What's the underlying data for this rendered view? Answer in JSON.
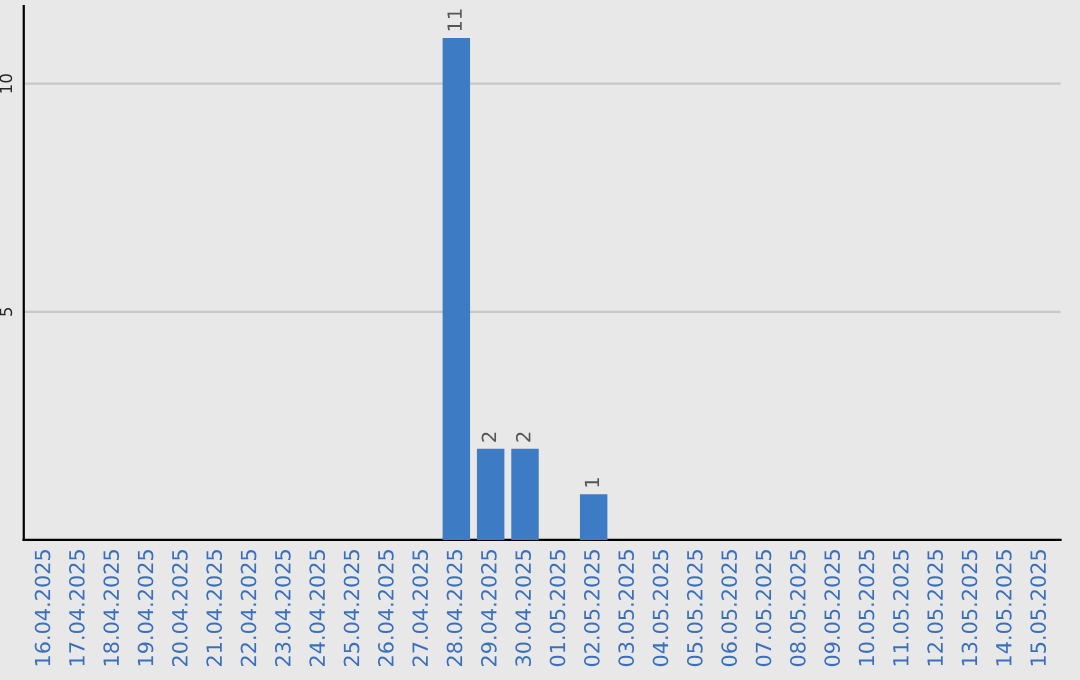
{
  "chart_data": {
    "type": "bar",
    "categories": [
      "16.04.2025",
      "17.04.2025",
      "18.04.2025",
      "19.04.2025",
      "20.04.2025",
      "21.04.2025",
      "22.04.2025",
      "23.04.2025",
      "24.04.2025",
      "25.04.2025",
      "26.04.2025",
      "27.04.2025",
      "28.04.2025",
      "29.04.2025",
      "30.04.2025",
      "01.05.2025",
      "02.05.2025",
      "03.05.2025",
      "04.05.2025",
      "05.05.2025",
      "06.05.2025",
      "07.05.2025",
      "08.05.2025",
      "09.05.2025",
      "10.05.2025",
      "11.05.2025",
      "12.05.2025",
      "13.05.2025",
      "14.05.2025",
      "15.05.2025"
    ],
    "values": [
      0,
      0,
      0,
      0,
      0,
      0,
      0,
      0,
      0,
      0,
      0,
      0,
      11,
      2,
      2,
      0,
      1,
      0,
      0,
      0,
      0,
      0,
      0,
      0,
      0,
      0,
      0,
      0,
      0,
      0
    ],
    "value_labels": [
      null,
      null,
      null,
      null,
      null,
      null,
      null,
      null,
      null,
      null,
      null,
      null,
      "11",
      "2",
      "2",
      null,
      "1",
      null,
      null,
      null,
      null,
      null,
      null,
      null,
      null,
      null,
      null,
      null,
      null,
      null
    ],
    "color": "#3d7cc4",
    "ylim": [
      0,
      11.7
    ],
    "yticks": [
      5,
      10
    ],
    "grid": "y"
  }
}
